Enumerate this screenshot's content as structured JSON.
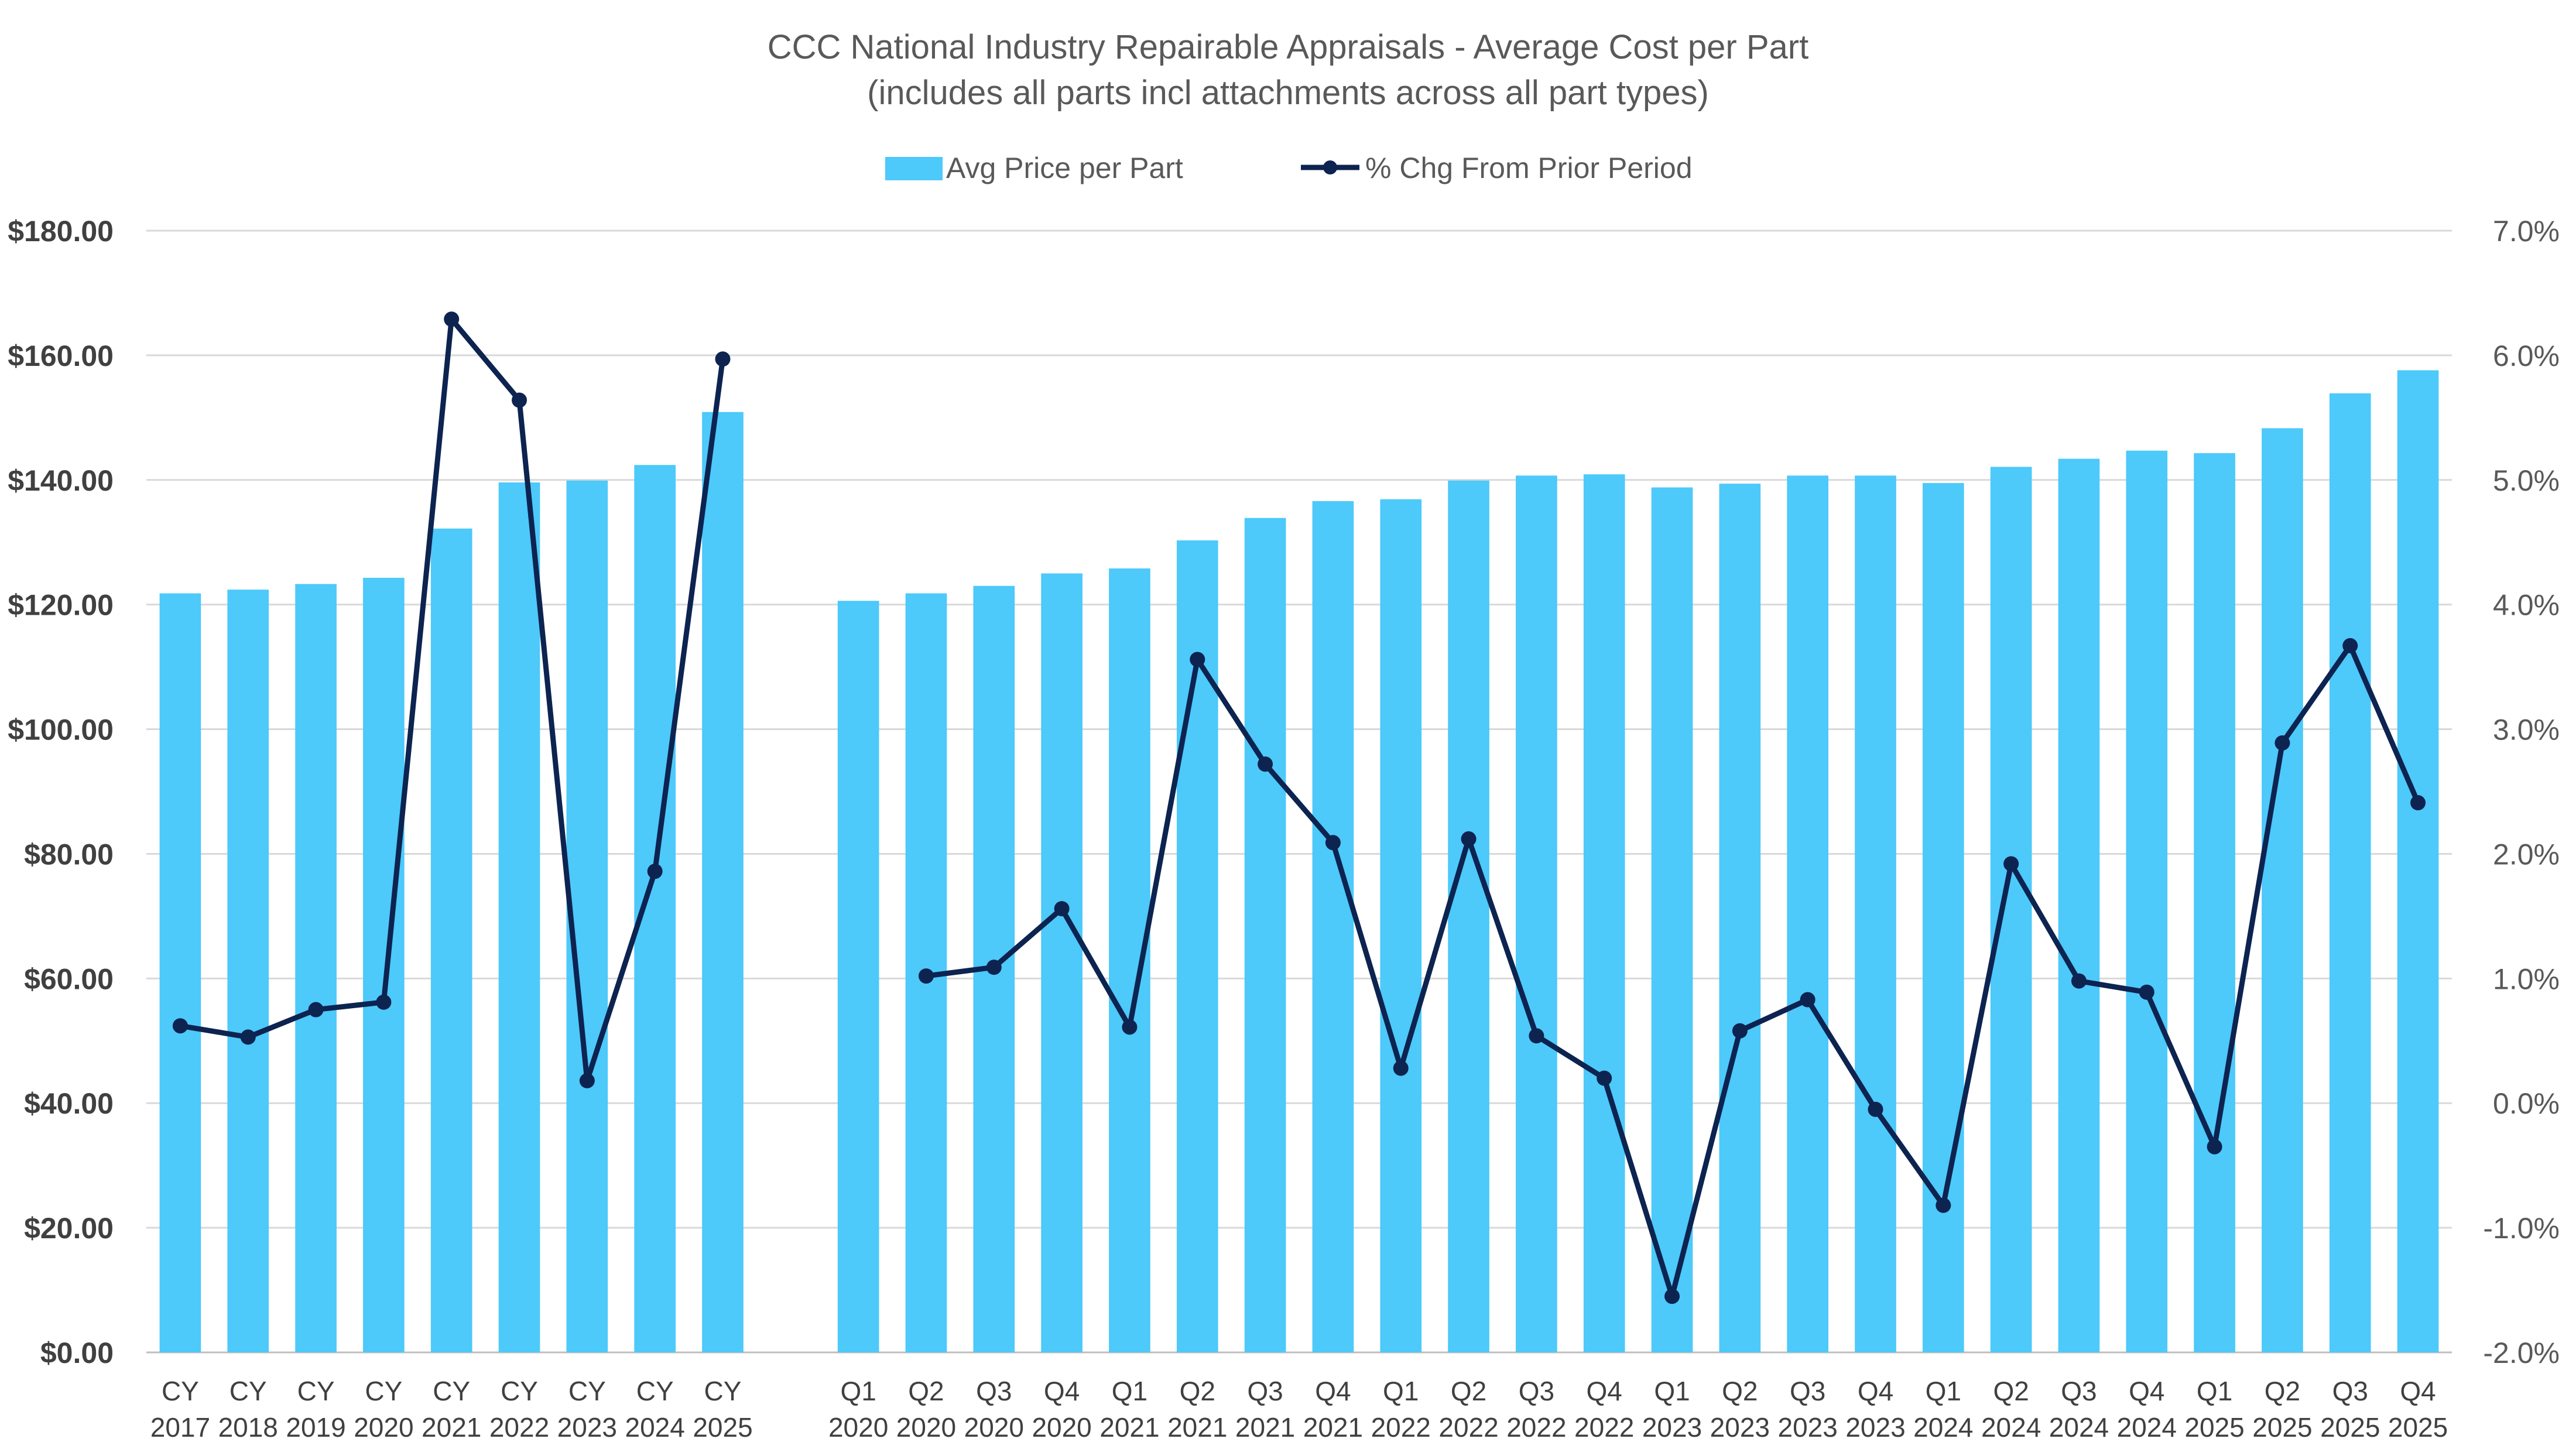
{
  "chart_data": {
    "type": "bar+line",
    "title": "CCC National Industry Repairable Appraisals - Average Cost per Part",
    "subtitle": "(includes all parts incl attachments across all part types)",
    "legend_position": "top-center",
    "grid": true,
    "colors": {
      "bars": "#4dc9fa",
      "line": "#0d2350",
      "grid": "#d9d9d9",
      "text": "#595959"
    },
    "y_left": {
      "min": 0,
      "max": 180,
      "step": 20,
      "tick_labels": [
        "$0.00",
        "$20.00",
        "$40.00",
        "$60.00",
        "$80.00",
        "$100.00",
        "$120.00",
        "$140.00",
        "$160.00",
        "$180.00"
      ]
    },
    "y_right": {
      "min": -2.0,
      "max": 7.0,
      "step": 1.0,
      "tick_labels": [
        "-2.0%",
        "-1.0%",
        "0.0%",
        "1.0%",
        "2.0%",
        "3.0%",
        "4.0%",
        "5.0%",
        "6.0%",
        "7.0%"
      ]
    },
    "categories": [
      [
        "CY",
        "2017"
      ],
      [
        "CY",
        "2018"
      ],
      [
        "CY",
        "2019"
      ],
      [
        "CY",
        "2020"
      ],
      [
        "CY",
        "2021"
      ],
      [
        "CY",
        "2022"
      ],
      [
        "CY",
        "2023"
      ],
      [
        "CY",
        "2024"
      ],
      [
        "CY",
        "2025"
      ],
      [
        "",
        ""
      ],
      [
        "Q1",
        "2020"
      ],
      [
        "Q2",
        "2020"
      ],
      [
        "Q3",
        "2020"
      ],
      [
        "Q4",
        "2020"
      ],
      [
        "Q1",
        "2021"
      ],
      [
        "Q2",
        "2021"
      ],
      [
        "Q3",
        "2021"
      ],
      [
        "Q4",
        "2021"
      ],
      [
        "Q1",
        "2022"
      ],
      [
        "Q2",
        "2022"
      ],
      [
        "Q3",
        "2022"
      ],
      [
        "Q4",
        "2022"
      ],
      [
        "Q1",
        "2023"
      ],
      [
        "Q2",
        "2023"
      ],
      [
        "Q3",
        "2023"
      ],
      [
        "Q4",
        "2023"
      ],
      [
        "Q1",
        "2024"
      ],
      [
        "Q2",
        "2024"
      ],
      [
        "Q3",
        "2024"
      ],
      [
        "Q4",
        "2024"
      ],
      [
        "Q1",
        "2025"
      ],
      [
        "Q2",
        "2025"
      ],
      [
        "Q3",
        "2025"
      ],
      [
        "Q4",
        "2025"
      ]
    ],
    "series": [
      {
        "name": "Avg Price per Part",
        "type": "bar",
        "axis": "left",
        "values": [
          121.8,
          122.4,
          123.3,
          124.3,
          132.2,
          139.6,
          139.9,
          142.4,
          150.9,
          null,
          120.6,
          121.8,
          123.0,
          125.0,
          125.8,
          130.3,
          133.9,
          136.6,
          136.9,
          139.9,
          140.7,
          140.9,
          138.8,
          139.4,
          140.7,
          140.7,
          139.5,
          142.1,
          143.4,
          144.7,
          144.3,
          148.3,
          153.9,
          157.6
        ]
      },
      {
        "name": "% Chg From Prior Period",
        "type": "line",
        "axis": "right",
        "values": [
          0.62,
          0.53,
          0.75,
          0.81,
          6.29,
          5.64,
          0.18,
          1.86,
          5.97,
          null,
          null,
          1.02,
          1.09,
          1.56,
          0.61,
          3.56,
          2.72,
          2.09,
          0.28,
          2.12,
          0.54,
          0.2,
          -1.55,
          0.58,
          0.83,
          -0.05,
          -0.82,
          1.92,
          0.98,
          0.89,
          -0.35,
          2.89,
          3.67,
          2.41
        ]
      }
    ]
  }
}
